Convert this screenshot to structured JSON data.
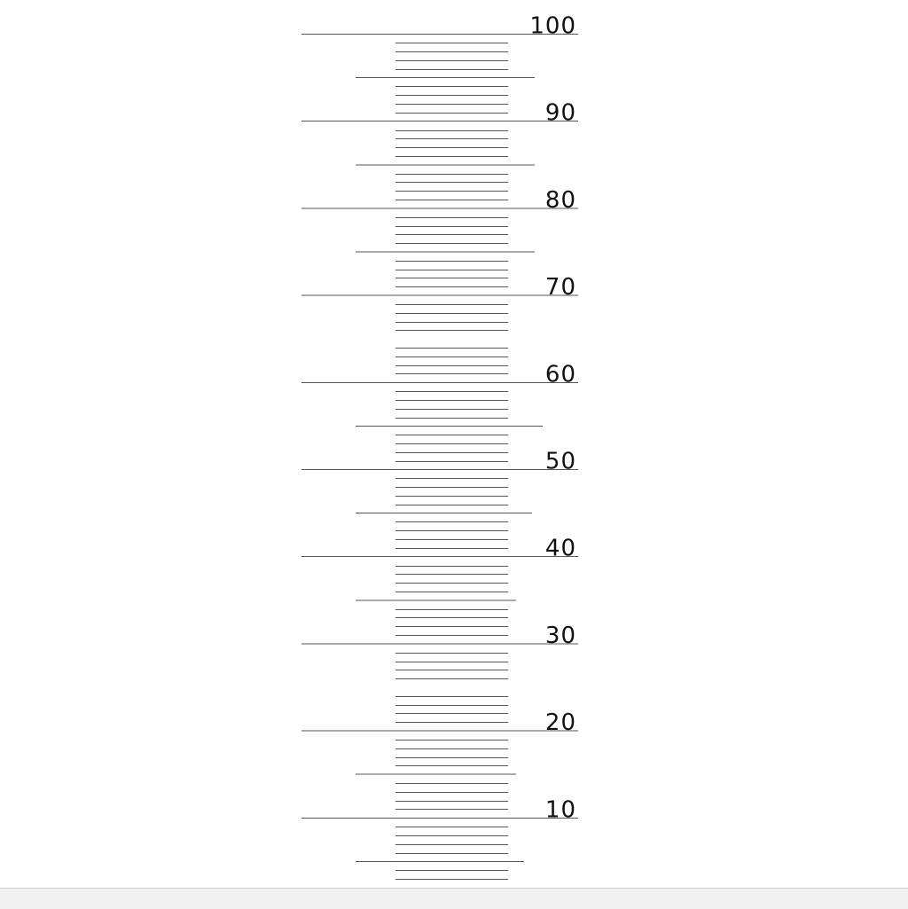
{
  "scale": {
    "labels": [
      "100",
      "90",
      "80",
      "70",
      "60",
      "50",
      "40",
      "30",
      "20",
      "10"
    ],
    "line_color": "#555555",
    "label_color": "#111111",
    "background": "#ffffff"
  }
}
